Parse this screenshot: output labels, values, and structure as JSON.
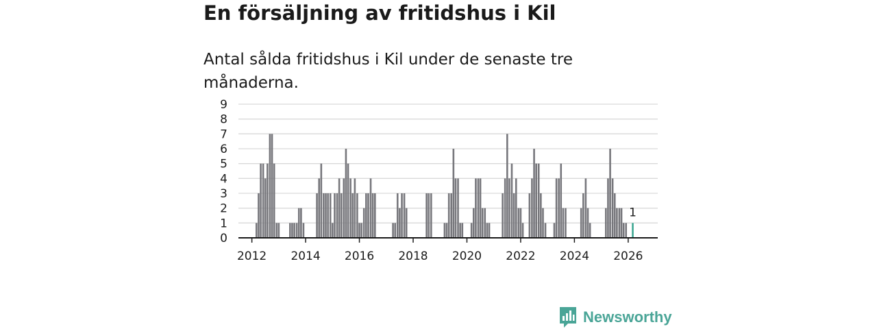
{
  "header": {
    "title": "En försäljning av fritidshus i Kil",
    "subtitle": "Antal sålda fritidshus i Kil under de senaste tre månaderna."
  },
  "brand": {
    "name": "Newsworthy"
  },
  "colors": {
    "bar": "#77777c",
    "highlight": "#3fa893",
    "grid": "#d9d9d9",
    "axis": "#1a1a1a",
    "brand": "#4aa597"
  },
  "chart_data": {
    "type": "bar",
    "title": "En försäljning av fritidshus i Kil",
    "subtitle": "Antal sålda fritidshus i Kil under de senaste tre månaderna.",
    "xlabel": "",
    "ylabel": "",
    "ylim": [
      0,
      9
    ],
    "yticks": [
      0,
      1,
      2,
      3,
      4,
      5,
      6,
      7,
      8,
      9
    ],
    "xrange": [
      2011.5,
      2027.1
    ],
    "xticks": [
      "2012",
      "2014",
      "2016",
      "2018",
      "2020",
      "2022",
      "2024",
      "2026"
    ],
    "grid": true,
    "series": [
      {
        "name": "Antal sålda fritidshus",
        "x": [
          2012.17,
          2012.25,
          2012.33,
          2012.42,
          2012.5,
          2012.58,
          2012.67,
          2012.75,
          2012.83,
          2012.92,
          2013.0,
          2013.42,
          2013.5,
          2013.58,
          2013.67,
          2013.75,
          2013.83,
          2013.92,
          2014.42,
          2014.5,
          2014.58,
          2014.67,
          2014.75,
          2014.83,
          2014.92,
          2015.0,
          2015.08,
          2015.17,
          2015.25,
          2015.33,
          2015.42,
          2015.5,
          2015.58,
          2015.67,
          2015.75,
          2015.83,
          2015.92,
          2016.0,
          2016.08,
          2016.17,
          2016.25,
          2016.33,
          2016.42,
          2016.5,
          2016.58,
          2017.25,
          2017.33,
          2017.42,
          2017.5,
          2017.58,
          2017.67,
          2017.75,
          2018.5,
          2018.58,
          2018.67,
          2019.17,
          2019.25,
          2019.33,
          2019.42,
          2019.5,
          2019.58,
          2019.67,
          2019.75,
          2019.83,
          2020.17,
          2020.25,
          2020.33,
          2020.42,
          2020.5,
          2020.58,
          2020.67,
          2020.75,
          2020.83,
          2021.33,
          2021.42,
          2021.5,
          2021.58,
          2021.67,
          2021.75,
          2021.83,
          2021.92,
          2022.0,
          2022.08,
          2022.33,
          2022.42,
          2022.5,
          2022.58,
          2022.67,
          2022.75,
          2022.83,
          2022.92,
          2023.25,
          2023.33,
          2023.42,
          2023.5,
          2023.58,
          2023.67,
          2024.25,
          2024.33,
          2024.42,
          2024.5,
          2024.58,
          2025.17,
          2025.25,
          2025.33,
          2025.42,
          2025.5,
          2025.58,
          2025.67,
          2025.75,
          2025.83,
          2025.92,
          2026.17
        ],
        "values": [
          1,
          3,
          5,
          5,
          4,
          5,
          7,
          7,
          5,
          1,
          1,
          1,
          1,
          1,
          1,
          2,
          2,
          1,
          3,
          4,
          5,
          3,
          3,
          3,
          3,
          1,
          3,
          3,
          4,
          3,
          4,
          6,
          5,
          4,
          3,
          4,
          3,
          1,
          1,
          2,
          3,
          3,
          4,
          3,
          3,
          1,
          1,
          3,
          2,
          3,
          3,
          2,
          3,
          3,
          3,
          1,
          1,
          3,
          3,
          6,
          4,
          4,
          1,
          1,
          1,
          2,
          4,
          4,
          4,
          2,
          2,
          1,
          1,
          3,
          4,
          7,
          4,
          5,
          3,
          4,
          2,
          2,
          1,
          3,
          4,
          6,
          5,
          5,
          3,
          2,
          1,
          1,
          4,
          4,
          5,
          2,
          2,
          2,
          3,
          4,
          2,
          1,
          2,
          4,
          6,
          4,
          3,
          2,
          2,
          2,
          1,
          1,
          1
        ]
      }
    ],
    "highlight": {
      "x": 2026.17,
      "value": 1,
      "label": "1"
    }
  }
}
